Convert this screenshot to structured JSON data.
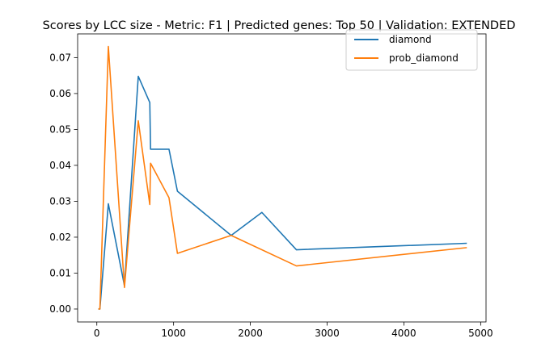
{
  "chart_data": {
    "type": "line",
    "title": "Scores by LCC size - Metric: F1 | Predicted genes: Top 50 | Validation: EXTENDED",
    "xlabel": "",
    "ylabel": "",
    "xlim": [
      -250,
      5070
    ],
    "ylim": [
      -0.0036,
      0.0766
    ],
    "xticks": [
      0,
      1000,
      2000,
      3000,
      4000,
      5000
    ],
    "xtick_labels": [
      "0",
      "1000",
      "2000",
      "3000",
      "4000",
      "5000"
    ],
    "yticks": [
      0.0,
      0.01,
      0.02,
      0.03,
      0.04,
      0.05,
      0.06,
      0.07
    ],
    "ytick_labels": [
      "0.00",
      "0.01",
      "0.02",
      "0.03",
      "0.04",
      "0.05",
      "0.06",
      "0.07"
    ],
    "grid": false,
    "legend_position": "top-right",
    "series": [
      {
        "name": "diamond",
        "color": "#1f77b4",
        "x": [
          20,
          40,
          150,
          360,
          540,
          690,
          700,
          940,
          1050,
          1750,
          2150,
          2600,
          4820
        ],
        "y": [
          0.0,
          0.0,
          0.0293,
          0.0065,
          0.0648,
          0.0575,
          0.0445,
          0.0445,
          0.0328,
          0.0205,
          0.0269,
          0.0165,
          0.0183
        ]
      },
      {
        "name": "prob_diamond",
        "color": "#ff7f0e",
        "x": [
          20,
          40,
          150,
          360,
          540,
          690,
          700,
          940,
          1050,
          1750,
          2600,
          4820
        ],
        "y": [
          0.0,
          0.0,
          0.0731,
          0.006,
          0.0524,
          0.0291,
          0.0406,
          0.031,
          0.0155,
          0.0205,
          0.012,
          0.0171
        ]
      }
    ]
  }
}
